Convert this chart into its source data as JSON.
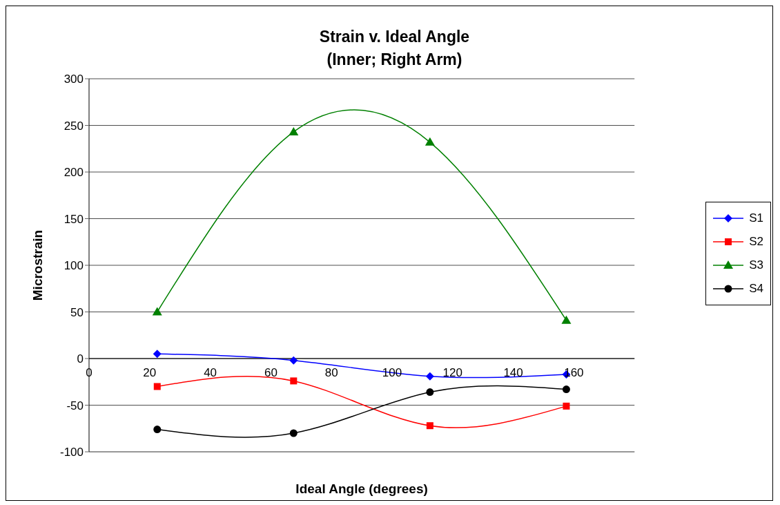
{
  "chart_data": {
    "type": "line",
    "title": "Strain v. Ideal Angle\n(Inner; Right Arm)",
    "xlabel": "Ideal Angle (degrees)",
    "ylabel": "Microstrain",
    "x": [
      22.5,
      67.5,
      112.5,
      157.5
    ],
    "series": [
      {
        "name": "S1",
        "color": "#0000ff",
        "marker": "diamond",
        "values": [
          5,
          -2,
          -19,
          -17
        ]
      },
      {
        "name": "S2",
        "color": "#ff0000",
        "marker": "square",
        "values": [
          -30,
          -24,
          -72,
          -51
        ]
      },
      {
        "name": "S3",
        "color": "#008000",
        "marker": "triangle",
        "values": [
          50,
          243,
          232,
          41
        ]
      },
      {
        "name": "S4",
        "color": "#000000",
        "marker": "circle",
        "values": [
          -76,
          -80,
          -36,
          -33
        ]
      }
    ],
    "xlim": [
      0,
      180
    ],
    "xticks": [
      0,
      20,
      40,
      60,
      80,
      100,
      120,
      140,
      160
    ],
    "ylim": [
      -100,
      300
    ],
    "yticks": [
      -100,
      -50,
      0,
      50,
      100,
      150,
      200,
      250,
      300
    ],
    "grid": "y",
    "legend": "right",
    "line_style": "solid"
  }
}
